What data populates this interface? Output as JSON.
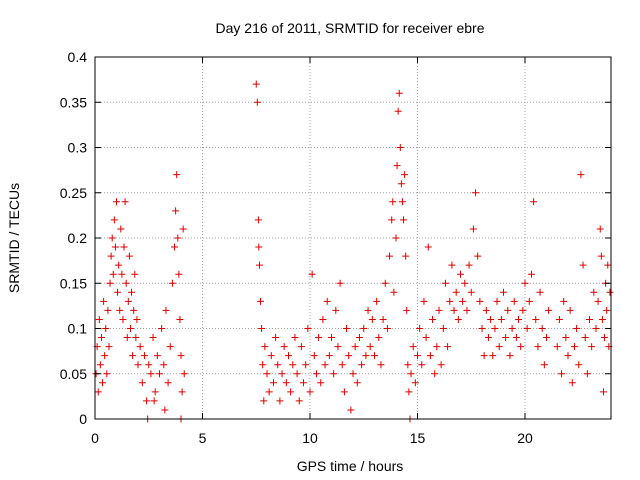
{
  "chart_data": {
    "type": "scatter",
    "title": "Day 216 of 2011, SRMTID for receiver ebre",
    "xlabel": "GPS time / hours",
    "ylabel": "SRMTID / TECUs",
    "xlim": [
      0,
      24
    ],
    "ylim": [
      0,
      0.4
    ],
    "xticks": [
      0,
      5,
      10,
      15,
      20
    ],
    "yticks": [
      0,
      0.05,
      0.1,
      0.15,
      0.2,
      0.25,
      0.3,
      0.35,
      0.4
    ],
    "grid": true,
    "marker": "+",
    "color": "#dd0000",
    "series": [
      {
        "name": "SRMTID",
        "points": [
          [
            0.05,
            0.05
          ],
          [
            0.1,
            0.08
          ],
          [
            0.15,
            0.03
          ],
          [
            0.2,
            0.11
          ],
          [
            0.25,
            0.06
          ],
          [
            0.3,
            0.09
          ],
          [
            0.35,
            0.04
          ],
          [
            0.4,
            0.13
          ],
          [
            0.45,
            0.07
          ],
          [
            0.5,
            0.1
          ],
          [
            0.55,
            0.05
          ],
          [
            0.6,
            0.12
          ],
          [
            0.65,
            0.08
          ],
          [
            0.7,
            0.15
          ],
          [
            0.75,
            0.18
          ],
          [
            0.8,
            0.2
          ],
          [
            0.85,
            0.16
          ],
          [
            0.9,
            0.22
          ],
          [
            0.95,
            0.19
          ],
          [
            1.0,
            0.24
          ],
          [
            1.05,
            0.14
          ],
          [
            1.1,
            0.17
          ],
          [
            1.15,
            0.12
          ],
          [
            1.2,
            0.21
          ],
          [
            1.25,
            0.16
          ],
          [
            1.3,
            0.11
          ],
          [
            1.35,
            0.19
          ],
          [
            1.4,
            0.24
          ],
          [
            1.45,
            0.15
          ],
          [
            1.5,
            0.09
          ],
          [
            1.55,
            0.13
          ],
          [
            1.6,
            0.18
          ],
          [
            1.65,
            0.1
          ],
          [
            1.7,
            0.14
          ],
          [
            1.75,
            0.07
          ],
          [
            1.8,
            0.12
          ],
          [
            1.85,
            0.16
          ],
          [
            1.9,
            0.09
          ],
          [
            1.95,
            0.11
          ],
          [
            2.0,
            0.06
          ],
          [
            2.1,
            0.08
          ],
          [
            2.2,
            0.04
          ],
          [
            2.3,
            0.07
          ],
          [
            2.4,
            0.02
          ],
          [
            2.5,
            0.06
          ],
          [
            2.6,
            0.05
          ],
          [
            2.7,
            0.09
          ],
          [
            2.8,
            0.03
          ],
          [
            2.9,
            0.07
          ],
          [
            3.0,
            0.05
          ],
          [
            3.1,
            0.1
          ],
          [
            3.2,
            0.06
          ],
          [
            3.3,
            0.12
          ],
          [
            3.4,
            0.04
          ],
          [
            3.5,
            0.08
          ],
          [
            3.6,
            0.15
          ],
          [
            3.7,
            0.19
          ],
          [
            3.75,
            0.23
          ],
          [
            3.8,
            0.27
          ],
          [
            3.85,
            0.2
          ],
          [
            3.9,
            0.16
          ],
          [
            3.95,
            0.11
          ],
          [
            4.0,
            0.07
          ],
          [
            4.05,
            0.03
          ],
          [
            4.1,
            0.21
          ],
          [
            4.15,
            0.05
          ],
          [
            2.45,
            0.0
          ],
          [
            3.25,
            0.01
          ],
          [
            4.0,
            0.0
          ],
          [
            2.75,
            0.02
          ],
          [
            7.5,
            0.37
          ],
          [
            7.55,
            0.35
          ],
          [
            7.6,
            0.22
          ],
          [
            7.62,
            0.19
          ],
          [
            7.65,
            0.17
          ],
          [
            7.7,
            0.13
          ],
          [
            7.75,
            0.1
          ],
          [
            7.8,
            0.06
          ],
          [
            7.85,
            0.02
          ],
          [
            7.9,
            0.08
          ],
          [
            8.0,
            0.05
          ],
          [
            8.1,
            0.03
          ],
          [
            8.2,
            0.07
          ],
          [
            8.3,
            0.04
          ],
          [
            8.4,
            0.09
          ],
          [
            8.5,
            0.06
          ],
          [
            8.6,
            0.02
          ],
          [
            8.7,
            0.05
          ],
          [
            8.8,
            0.08
          ],
          [
            8.9,
            0.04
          ],
          [
            9.0,
            0.07
          ],
          [
            9.1,
            0.03
          ],
          [
            9.2,
            0.06
          ],
          [
            9.3,
            0.09
          ],
          [
            9.4,
            0.05
          ],
          [
            9.5,
            0.02
          ],
          [
            9.6,
            0.08
          ],
          [
            9.7,
            0.04
          ],
          [
            9.8,
            0.06
          ],
          [
            9.9,
            0.1
          ],
          [
            10.0,
            0.03
          ],
          [
            10.1,
            0.16
          ],
          [
            10.2,
            0.07
          ],
          [
            10.3,
            0.05
          ],
          [
            10.4,
            0.09
          ],
          [
            10.5,
            0.04
          ],
          [
            10.6,
            0.11
          ],
          [
            10.7,
            0.06
          ],
          [
            10.8,
            0.13
          ],
          [
            10.9,
            0.07
          ],
          [
            11.0,
            0.09
          ],
          [
            11.1,
            0.05
          ],
          [
            11.2,
            0.12
          ],
          [
            11.3,
            0.08
          ],
          [
            11.4,
            0.15
          ],
          [
            11.5,
            0.06
          ],
          [
            11.6,
            0.03
          ],
          [
            11.7,
            0.1
          ],
          [
            11.8,
            0.07
          ],
          [
            11.9,
            0.01
          ],
          [
            12.0,
            0.05
          ],
          [
            12.1,
            0.08
          ],
          [
            12.2,
            0.04
          ],
          [
            12.3,
            0.09
          ],
          [
            12.4,
            0.06
          ],
          [
            12.5,
            0.1
          ],
          [
            12.6,
            0.07
          ],
          [
            12.7,
            0.12
          ],
          [
            12.8,
            0.08
          ],
          [
            12.9,
            0.11
          ],
          [
            13.0,
            0.07
          ],
          [
            13.1,
            0.13
          ],
          [
            13.2,
            0.09
          ],
          [
            13.3,
            0.06
          ],
          [
            13.4,
            0.11
          ],
          [
            13.5,
            0.15
          ],
          [
            13.6,
            0.1
          ],
          [
            13.7,
            0.18
          ],
          [
            13.8,
            0.22
          ],
          [
            13.85,
            0.24
          ],
          [
            13.9,
            0.14
          ],
          [
            14.0,
            0.2
          ],
          [
            14.05,
            0.28
          ],
          [
            14.1,
            0.34
          ],
          [
            14.15,
            0.36
          ],
          [
            14.2,
            0.3
          ],
          [
            14.25,
            0.26
          ],
          [
            14.3,
            0.24
          ],
          [
            14.35,
            0.22
          ],
          [
            14.4,
            0.27
          ],
          [
            14.45,
            0.18
          ],
          [
            14.5,
            0.12
          ],
          [
            14.55,
            0.06
          ],
          [
            14.6,
            0.03
          ],
          [
            14.65,
            0.0
          ],
          [
            14.7,
            0.05
          ],
          [
            14.8,
            0.08
          ],
          [
            14.9,
            0.04
          ],
          [
            15.0,
            0.07
          ],
          [
            15.1,
            0.1
          ],
          [
            15.2,
            0.06
          ],
          [
            15.3,
            0.13
          ],
          [
            15.4,
            0.09
          ],
          [
            15.5,
            0.19
          ],
          [
            15.6,
            0.07
          ],
          [
            15.7,
            0.11
          ],
          [
            15.8,
            0.05
          ],
          [
            15.9,
            0.08
          ],
          [
            16.0,
            0.12
          ],
          [
            16.1,
            0.06
          ],
          [
            16.2,
            0.1
          ],
          [
            16.3,
            0.15
          ],
          [
            16.4,
            0.08
          ],
          [
            16.5,
            0.13
          ],
          [
            16.6,
            0.17
          ],
          [
            16.7,
            0.12
          ],
          [
            16.8,
            0.14
          ],
          [
            16.9,
            0.11
          ],
          [
            17.0,
            0.16
          ],
          [
            17.1,
            0.13
          ],
          [
            17.2,
            0.15
          ],
          [
            17.3,
            0.12
          ],
          [
            17.4,
            0.17
          ],
          [
            17.5,
            0.14
          ],
          [
            17.6,
            0.21
          ],
          [
            17.7,
            0.25
          ],
          [
            17.8,
            0.18
          ],
          [
            17.9,
            0.13
          ],
          [
            18.0,
            0.1
          ],
          [
            18.1,
            0.07
          ],
          [
            18.2,
            0.12
          ],
          [
            18.3,
            0.09
          ],
          [
            18.4,
            0.11
          ],
          [
            18.5,
            0.07
          ],
          [
            18.6,
            0.1
          ],
          [
            18.7,
            0.13
          ],
          [
            18.8,
            0.08
          ],
          [
            18.9,
            0.11
          ],
          [
            19.0,
            0.14
          ],
          [
            19.1,
            0.09
          ],
          [
            19.2,
            0.12
          ],
          [
            19.3,
            0.07
          ],
          [
            19.4,
            0.1
          ],
          [
            19.5,
            0.13
          ],
          [
            19.6,
            0.09
          ],
          [
            19.7,
            0.11
          ],
          [
            19.8,
            0.08
          ],
          [
            19.9,
            0.12
          ],
          [
            20.0,
            0.15
          ],
          [
            20.1,
            0.1
          ],
          [
            20.2,
            0.13
          ],
          [
            20.3,
            0.16
          ],
          [
            20.4,
            0.24
          ],
          [
            20.5,
            0.11
          ],
          [
            20.6,
            0.08
          ],
          [
            20.7,
            0.14
          ],
          [
            20.8,
            0.1
          ],
          [
            20.9,
            0.06
          ],
          [
            21.0,
            0.09
          ],
          [
            21.1,
            0.12
          ],
          [
            21.5,
            0.08
          ],
          [
            21.6,
            0.11
          ],
          [
            21.7,
            0.05
          ],
          [
            21.8,
            0.13
          ],
          [
            21.9,
            0.09
          ],
          [
            22.0,
            0.07
          ],
          [
            22.1,
            0.12
          ],
          [
            22.2,
            0.04
          ],
          [
            22.3,
            0.08
          ],
          [
            22.4,
            0.1
          ],
          [
            22.5,
            0.06
          ],
          [
            22.6,
            0.27
          ],
          [
            22.7,
            0.17
          ],
          [
            22.8,
            0.09
          ],
          [
            22.9,
            0.05
          ],
          [
            23.0,
            0.11
          ],
          [
            23.1,
            0.08
          ],
          [
            23.2,
            0.14
          ],
          [
            23.3,
            0.1
          ],
          [
            23.4,
            0.13
          ],
          [
            23.5,
            0.21
          ],
          [
            23.55,
            0.18
          ],
          [
            23.6,
            0.11
          ],
          [
            23.65,
            0.03
          ],
          [
            23.7,
            0.09
          ],
          [
            23.75,
            0.15
          ],
          [
            23.8,
            0.12
          ],
          [
            23.85,
            0.17
          ],
          [
            23.9,
            0.08
          ],
          [
            23.95,
            0.14
          ]
        ]
      }
    ]
  }
}
